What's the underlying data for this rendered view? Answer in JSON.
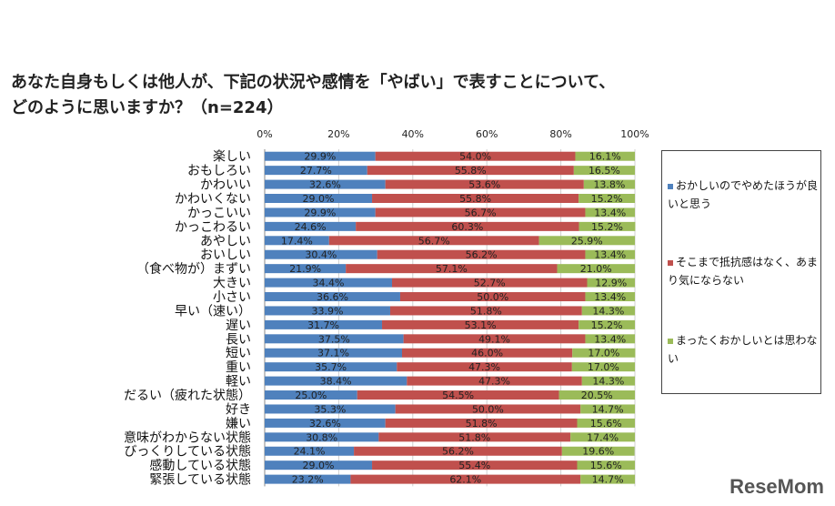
{
  "title_line1": "あなた自身もしくは他人が、下記の状況や感情を「やばい」で表すことについて、",
  "title_line2": "どのように思いますか？（n=224）",
  "logo_text": "ReseMom",
  "chart_data": {
    "type": "bar",
    "orientation": "horizontal",
    "stacked": "100%",
    "title": "あなた自身もしくは他人が、下記の状況や感情を「やばい」で表すことについて、どのように思いますか？（n=224）",
    "xlim": [
      0,
      100
    ],
    "x_ticks": [
      "0%",
      "20%",
      "40%",
      "60%",
      "80%",
      "100%"
    ],
    "grid": true,
    "legend_position": "right",
    "categories": [
      "楽しい",
      "おもしろい",
      "かわいい",
      "かわいくない",
      "かっこいい",
      "かっこわるい",
      "あやしい",
      "おいしい",
      "（食べ物が）まずい",
      "大きい",
      "小さい",
      "早い（速い）",
      "遅い",
      "長い",
      "短い",
      "重い",
      "軽い",
      "だるい（疲れた状態）",
      "好き",
      "嫌い",
      "意味がわからない状態",
      "びっくりしている状態",
      "感動している状態",
      "緊張している状態"
    ],
    "series": [
      {
        "name": "おかしいのでやめたほうが良いと思う",
        "color": "#4f81bd",
        "values": [
          29.9,
          27.7,
          32.6,
          29.0,
          29.9,
          24.6,
          17.4,
          30.4,
          21.9,
          34.4,
          36.6,
          33.9,
          31.7,
          37.5,
          37.1,
          35.7,
          38.4,
          25.0,
          35.3,
          32.6,
          30.8,
          24.1,
          29.0,
          23.2
        ]
      },
      {
        "name": "そこまで抵抗感はなく、あまり気にならない",
        "color": "#c0504d",
        "values": [
          54.0,
          55.8,
          53.6,
          55.8,
          56.7,
          60.3,
          56.7,
          56.2,
          57.1,
          52.7,
          50.0,
          51.8,
          53.1,
          49.1,
          46.0,
          47.3,
          47.3,
          54.5,
          50.0,
          51.8,
          51.8,
          56.2,
          55.4,
          62.1
        ]
      },
      {
        "name": "まったくおかしいとは思わない",
        "color": "#9bbb59",
        "values": [
          16.1,
          16.5,
          13.8,
          15.2,
          13.4,
          15.2,
          25.9,
          13.4,
          21.0,
          12.9,
          13.4,
          14.3,
          15.2,
          13.4,
          17.0,
          17.0,
          14.3,
          20.5,
          14.7,
          15.6,
          17.4,
          19.6,
          15.6,
          14.7
        ]
      }
    ]
  }
}
